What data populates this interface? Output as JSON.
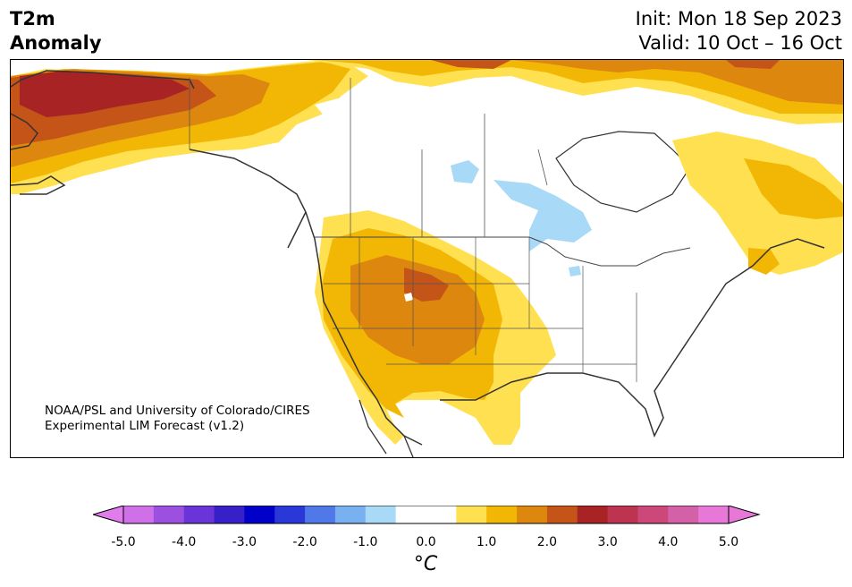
{
  "header": {
    "title_line1": "T2m",
    "title_line2": "Anomaly",
    "init_text": "Init: Mon 18 Sep 2023",
    "valid_text": "Valid: 10 Oct – 16 Oct"
  },
  "map": {
    "region": "North America",
    "credit_line1": "NOAA/PSL and University of Colorado/CIRES",
    "credit_line2": "Experimental LIM Forecast (v1.2)"
  },
  "colorbar": {
    "unit": "°C",
    "tick_labels": [
      "-5.0",
      "-4.0",
      "-3.0",
      "-2.0",
      "-1.0",
      "0.0",
      "1.0",
      "2.0",
      "3.0",
      "4.0",
      "5.0"
    ],
    "level_colors": [
      "#d070e8",
      "#9b50e0",
      "#6a35d8",
      "#3820c8",
      "#0000c8",
      "#2a38d8",
      "#5078e8",
      "#78b0f0",
      "#a8daf8",
      "#ffffff",
      "#ffffff",
      "#ffe050",
      "#f2b705",
      "#de870e",
      "#c45418",
      "#a82424",
      "#bc3450",
      "#cc4878",
      "#d460a8",
      "#e878d8"
    ],
    "min_extend_color": "#e07cec",
    "max_extend_color": "#e878d8"
  }
}
